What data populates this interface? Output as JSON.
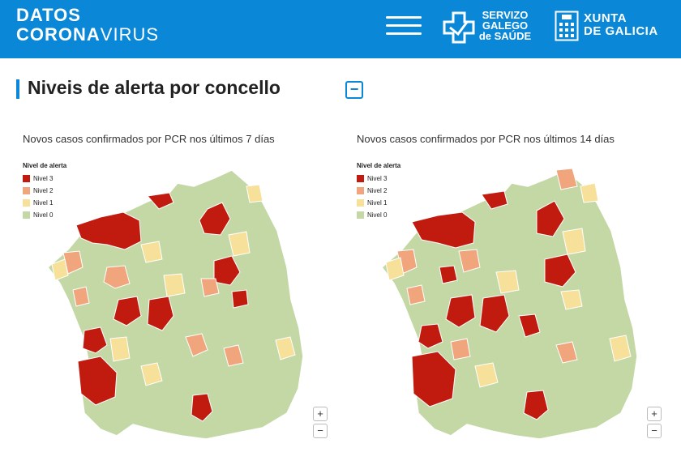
{
  "header": {
    "brand_top": "DATOS",
    "brand_bottom_a": "CORONA",
    "brand_bottom_b": "VIRUS",
    "menu_icon": "hamburger-menu-icon",
    "sergas_line1": "SERVIZO",
    "sergas_line2": "GALEGO",
    "sergas_line3": "de SAÚDE",
    "xunta_line1": "XUNTA",
    "xunta_line2": "DE GALICIA"
  },
  "section": {
    "title": "Niveis de alerta por concello",
    "collapse_label": "−"
  },
  "maps": [
    {
      "caption": "Novos casos confirmados por PCR nos últimos 7 días",
      "legend_title": "Nivel de alerta",
      "legend": [
        "Nivel 3",
        "Nivel 2",
        "Nivel 1",
        "Nivel 0"
      ],
      "zoom_in": "+",
      "zoom_out": "−"
    },
    {
      "caption": "Novos casos confirmados por PCR nos últimos 14 días",
      "legend_title": "Nivel de alerta",
      "legend": [
        "Nivel 3",
        "Nivel 2",
        "Nivel 1",
        "Nivel 0"
      ],
      "zoom_in": "+",
      "zoom_out": "−"
    }
  ],
  "colors": {
    "header_bg": "#0a87d6",
    "level3": "#c11b10",
    "level2": "#f0a57c",
    "level1": "#f6e09a",
    "level0": "#c3d8a4",
    "borders": "#ffffff"
  }
}
